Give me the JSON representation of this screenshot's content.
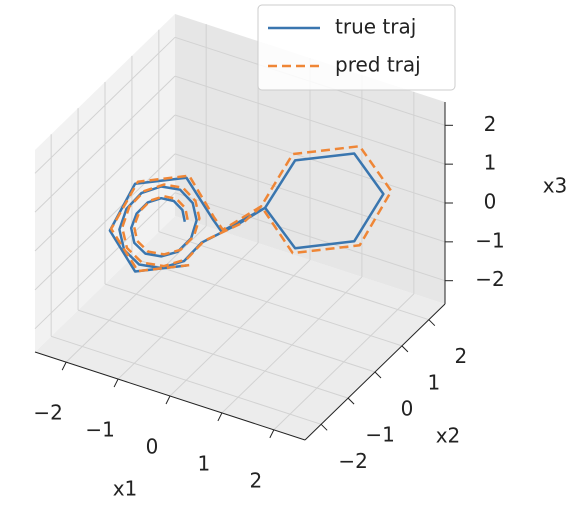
{
  "chart_data": {
    "type": "line3d",
    "x_label": "x1",
    "y_label": "x2",
    "z_label": "x3",
    "xlim": [
      -2.6,
      2.6
    ],
    "ylim": [
      -2.6,
      2.6
    ],
    "zlim": [
      -2.6,
      2.6
    ],
    "xticks": [
      {
        "value": -2,
        "label": "−2"
      },
      {
        "value": -1,
        "label": "−1"
      },
      0,
      1,
      2
    ],
    "yticks": [
      {
        "value": -2,
        "label": "−2"
      },
      {
        "value": -1,
        "label": "−1"
      },
      0,
      1,
      2
    ],
    "zticks": [
      {
        "value": -2,
        "label": "−2"
      },
      {
        "value": -1,
        "label": "−1"
      },
      0,
      1,
      2
    ],
    "grid": true,
    "legend": "upper right",
    "series": [
      {
        "name": "true traj",
        "color": "#3a76af",
        "linestyle": "solid",
        "x": [
          -0.7,
          -0.73,
          -0.84,
          -1.0,
          -1.17,
          -1.31,
          -1.38,
          -1.34,
          -1.2,
          -1.0,
          -0.79,
          -0.62,
          -0.55,
          -0.6,
          -0.76,
          -1.0,
          -1.25,
          -1.44,
          -1.53,
          -1.47,
          -1.28,
          -1.0,
          -0.71,
          -0.49,
          0.0,
          0.25,
          0.63,
          1.38,
          1.75,
          1.38,
          0.63,
          0.25,
          -0.2,
          -0.35,
          -0.68,
          -1.33,
          -1.65,
          -1.33,
          -0.68
        ],
        "y": [
          -0.7,
          -0.73,
          -0.84,
          -1.0,
          -1.17,
          -1.31,
          -1.38,
          -1.34,
          -1.2,
          -1.0,
          -0.79,
          -0.62,
          -0.55,
          -0.6,
          -0.76,
          -1.0,
          -1.25,
          -1.44,
          -1.53,
          -1.47,
          -1.28,
          -1.0,
          -0.71,
          -0.49,
          0.0,
          0.45,
          0.83,
          1.58,
          1.95,
          1.58,
          0.83,
          0.45,
          -0.3,
          -0.35,
          -0.68,
          -1.33,
          -1.65,
          -1.33,
          -0.68
        ],
        "z": [
          0.3,
          0.61,
          0.87,
          0.98,
          0.91,
          0.66,
          0.3,
          -0.09,
          -0.4,
          -0.52,
          -0.45,
          -0.14,
          0.3,
          0.76,
          1.14,
          1.28,
          1.17,
          0.81,
          0.3,
          -0.24,
          -0.66,
          -0.82,
          -0.71,
          -0.29,
          0.1,
          0.3,
          -0.83,
          -0.83,
          0.3,
          1.43,
          1.43,
          0.3,
          0.0,
          0.3,
          1.43,
          1.43,
          0.3,
          -0.83,
          -0.83
        ]
      },
      {
        "name": "pred traj",
        "color": "#ef8636",
        "linestyle": "dashed",
        "x": [
          -0.62,
          -0.65,
          -0.76,
          -0.92,
          -1.09,
          -1.23,
          -1.3,
          -1.26,
          -1.12,
          -0.92,
          -0.71,
          -0.54,
          -0.47,
          -0.52,
          -0.68,
          -0.92,
          -1.17,
          -1.36,
          -1.45,
          -1.39,
          -1.2,
          -0.92,
          -0.63,
          -0.41,
          0.1,
          0.2,
          0.6,
          1.45,
          1.85,
          1.45,
          0.6,
          0.2,
          -0.15,
          -0.3,
          -0.6,
          -1.25,
          -1.6,
          -1.25,
          -0.6
        ],
        "y": [
          -0.75,
          -0.78,
          -0.89,
          -1.05,
          -1.22,
          -1.36,
          -1.43,
          -1.39,
          -1.25,
          -1.05,
          -0.84,
          -0.67,
          -0.6,
          -0.65,
          -0.81,
          -1.05,
          -1.3,
          -1.49,
          -1.58,
          -1.52,
          -1.33,
          -1.05,
          -0.76,
          -0.54,
          -0.05,
          0.4,
          0.8,
          1.65,
          2.05,
          1.65,
          0.8,
          0.4,
          -0.35,
          -0.4,
          -0.73,
          -1.38,
          -1.7,
          -1.38,
          -0.73
        ],
        "z": [
          0.42,
          0.73,
          0.99,
          1.1,
          1.03,
          0.78,
          0.42,
          0.03,
          -0.28,
          -0.4,
          -0.33,
          -0.02,
          0.42,
          0.88,
          1.26,
          1.4,
          1.29,
          0.93,
          0.42,
          -0.12,
          -0.54,
          -0.7,
          -0.59,
          -0.17,
          0.2,
          0.35,
          -0.95,
          -0.95,
          0.35,
          1.6,
          1.6,
          0.35,
          0.1,
          0.4,
          1.55,
          1.55,
          0.4,
          -0.75,
          -0.75
        ]
      }
    ]
  }
}
